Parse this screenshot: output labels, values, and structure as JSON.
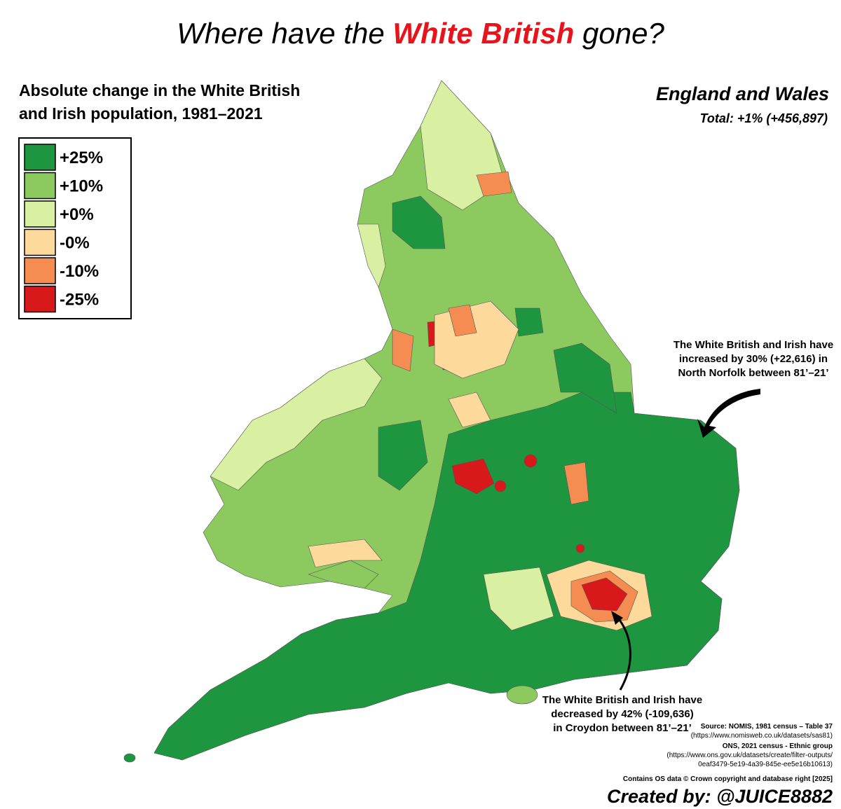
{
  "title": {
    "before": "Where have the ",
    "highlight": "White British",
    "after": " gone?"
  },
  "subtitle": [
    "Absolute change in the White British",
    "and Irish population, 1981–2021"
  ],
  "legend": [
    {
      "label": "+25%",
      "color": "#1e9640"
    },
    {
      "label": "+10%",
      "color": "#8cca60"
    },
    {
      "label": "+0%",
      "color": "#d9f0a3"
    },
    {
      "label": "-0%",
      "color": "#fdd99b"
    },
    {
      "label": "-10%",
      "color": "#f58d52"
    },
    {
      "label": "-25%",
      "color": "#d7191c"
    }
  ],
  "region": {
    "name": "England and Wales",
    "total": "Total: +1% (+456,897)"
  },
  "annotations": [
    [
      "The White British and Irish have",
      "increased by 30% (+22,616) in",
      "North Norfolk between 81’–21’"
    ],
    [
      "The White British and Irish have",
      "decreased by 42% (-109,636)",
      "in Croydon between 81’–21’"
    ]
  ],
  "source": [
    "Source: NOMIS, 1981 census – Table 37",
    "(https://www.nomisweb.co.uk/datasets/sas81)",
    "ONS, 2021 census - Ethnic group",
    "(https://www.ons.gov.uk/datasets/create/filter-outputs/",
    "0eaf3479-5e19-4a39-845e-ee5e16b10613)"
  ],
  "copyright": "Contains OS data © Crown copyright and database right [2025]",
  "credit": "Created by: @JUICE8882"
}
